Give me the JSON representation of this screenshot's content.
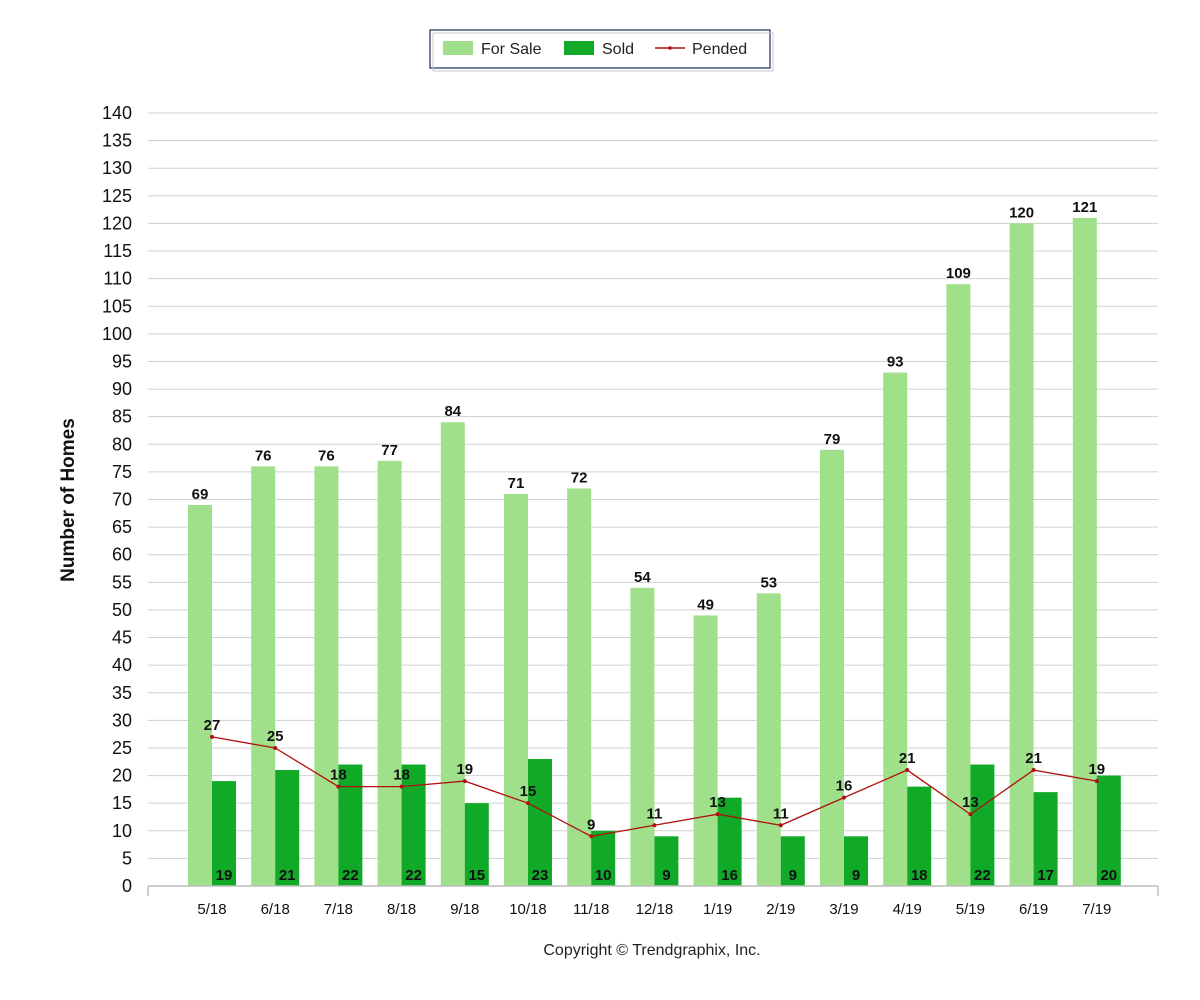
{
  "chart_data": {
    "type": "bar",
    "categories": [
      "5/18",
      "6/18",
      "7/18",
      "8/18",
      "9/18",
      "10/18",
      "11/18",
      "12/18",
      "1/19",
      "2/19",
      "3/19",
      "4/19",
      "5/19",
      "6/19",
      "7/19"
    ],
    "series": [
      {
        "name": "For Sale",
        "kind": "bar",
        "color": "#a0e08a",
        "values": [
          69,
          76,
          76,
          77,
          84,
          71,
          72,
          54,
          49,
          53,
          79,
          93,
          109,
          120,
          121
        ]
      },
      {
        "name": "Sold",
        "kind": "bar",
        "color": "#10aa28",
        "values": [
          19,
          21,
          22,
          22,
          15,
          23,
          10,
          9,
          16,
          9,
          9,
          18,
          22,
          17,
          20
        ]
      },
      {
        "name": "Pended",
        "kind": "line",
        "color": "#b01010",
        "values": [
          27,
          25,
          18,
          18,
          19,
          15,
          9,
          11,
          13,
          11,
          16,
          21,
          13,
          21,
          19
        ]
      }
    ],
    "ylabel": "Number of Homes",
    "ylim": [
      0,
      140
    ],
    "ytick_step": 5,
    "grid": true,
    "legend_position": "top-center"
  },
  "footer": {
    "copyright": "Copyright © Trendgraphix, Inc."
  }
}
